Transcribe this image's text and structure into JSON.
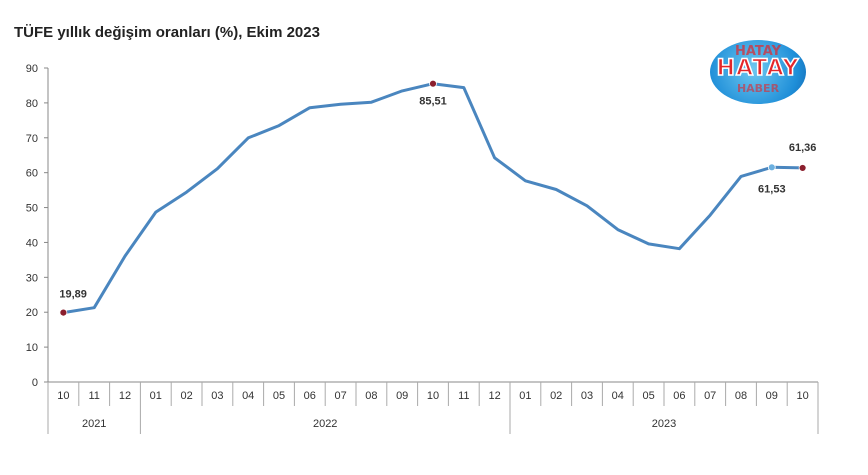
{
  "chart_data": {
    "type": "line",
    "title": "TÜFE yıllık değişim oranları (%), Ekim 2023",
    "x": [
      "10",
      "11",
      "12",
      "01",
      "02",
      "03",
      "04",
      "05",
      "06",
      "07",
      "08",
      "09",
      "10",
      "11",
      "12",
      "01",
      "02",
      "03",
      "04",
      "05",
      "06",
      "07",
      "08",
      "09",
      "10"
    ],
    "year_groups": [
      {
        "label": "2021",
        "count": 3
      },
      {
        "label": "2022",
        "count": 12
      },
      {
        "label": "2023",
        "count": 10
      }
    ],
    "series": [
      {
        "values": [
          19.89,
          21.31,
          36.08,
          48.69,
          54.44,
          61.14,
          69.97,
          73.5,
          78.62,
          79.6,
          80.21,
          83.45,
          85.51,
          84.39,
          64.27,
          57.68,
          55.18,
          50.51,
          43.68,
          39.59,
          38.21,
          47.83,
          58.94,
          61.53,
          61.36
        ],
        "color": "#4a86bf"
      }
    ],
    "ylim": [
      0,
      90
    ],
    "yticks": [
      0,
      10,
      20,
      30,
      40,
      50,
      60,
      70,
      80,
      90
    ],
    "annotations": [
      {
        "index": 0,
        "text": "19,89",
        "marker_color": "#8b1f2e"
      },
      {
        "index": 12,
        "text": "85,51",
        "marker_color": "#8b1f2e"
      },
      {
        "index": 23,
        "text": "61,53",
        "marker_color": "#6cb0e0"
      },
      {
        "index": 24,
        "text": "61,36",
        "marker_color": "#8b1f2e"
      }
    ],
    "xlabel": "",
    "ylabel": "",
    "grid": false,
    "line_color": "#4a86bf"
  },
  "logo": {
    "text": "HATAY",
    "ring_text_top": "HATAY",
    "ring_text_bottom": "HABER"
  }
}
